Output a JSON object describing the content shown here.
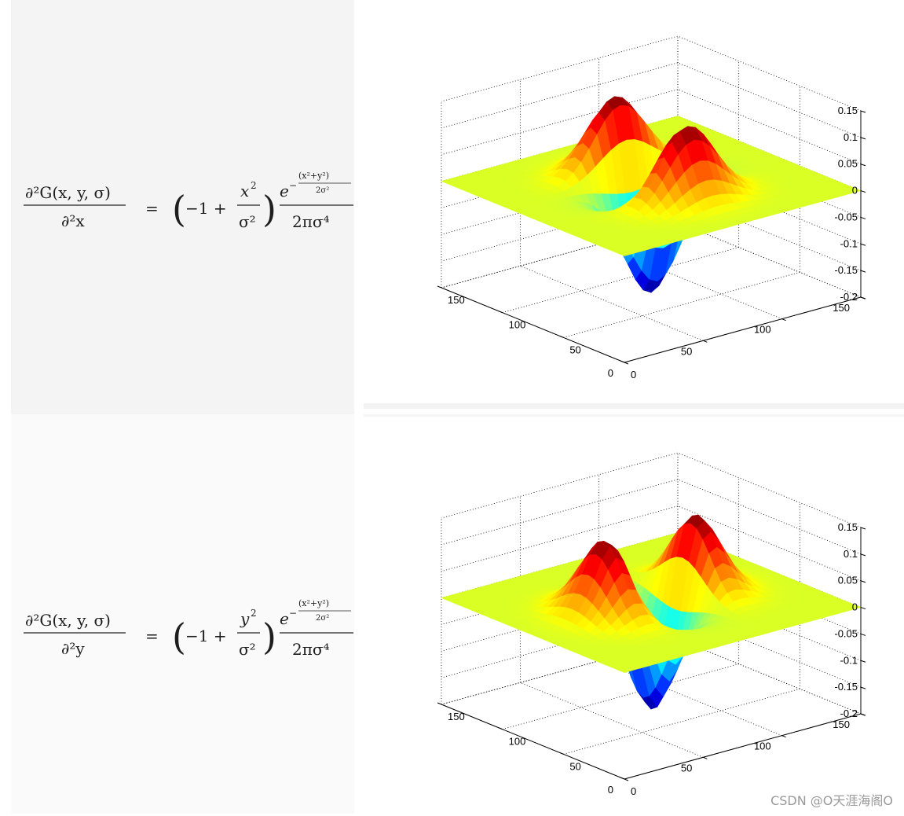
{
  "equations": [
    {
      "lhs_num": "∂²G(x, y, σ)",
      "lhs_den": "∂²x",
      "equals": "=",
      "factor_var": "x",
      "exp_num": "(x²+y²)",
      "exp_den": "2σ²",
      "base": "e",
      "den": "2πσ⁴"
    },
    {
      "lhs_num": "∂²G(x, y, σ)",
      "lhs_den": "∂²y",
      "equals": "=",
      "factor_var": "y",
      "exp_num": "(x²+y²)",
      "exp_den": "2σ²",
      "base": "e",
      "den": "2πσ⁴"
    }
  ],
  "chart_data": [
    {
      "type": "surface",
      "function": "second derivative of Gaussian w.r.t. x",
      "z_ticks": [
        "0.15",
        "0.1",
        "0.05",
        "0",
        "-0.05",
        "-0.1",
        "-0.15",
        "-0.2"
      ],
      "z_values": [
        0.15,
        0.1,
        0.05,
        0,
        -0.05,
        -0.1,
        -0.15,
        -0.2
      ],
      "left_axis_ticks": [
        "150",
        "100",
        "50",
        "0"
      ],
      "right_axis_ticks": [
        "0",
        "50",
        "100",
        "150"
      ],
      "xlim": [
        0,
        150
      ],
      "ylim": [
        0,
        150
      ],
      "zlim": [
        -0.2,
        0.15
      ],
      "peak_max": 0.14,
      "trough_min": -0.2,
      "grid": true,
      "colormap": "jet"
    },
    {
      "type": "surface",
      "function": "second derivative of Gaussian w.r.t. y",
      "z_ticks": [
        "0.15",
        "0.1",
        "0.05",
        "0",
        "-0.05",
        "-0.1",
        "-0.15",
        "-0.2"
      ],
      "z_values": [
        0.15,
        0.1,
        0.05,
        0,
        -0.05,
        -0.1,
        -0.15,
        -0.2
      ],
      "left_axis_ticks": [
        "150",
        "100",
        "50",
        "0"
      ],
      "right_axis_ticks": [
        "0",
        "50",
        "100",
        "150"
      ],
      "xlim": [
        0,
        150
      ],
      "ylim": [
        0,
        150
      ],
      "zlim": [
        -0.2,
        0.15
      ],
      "peak_max": 0.14,
      "trough_min": -0.2,
      "grid": true,
      "colormap": "jet"
    }
  ],
  "watermark": "CSDN @O天涯海阁O"
}
